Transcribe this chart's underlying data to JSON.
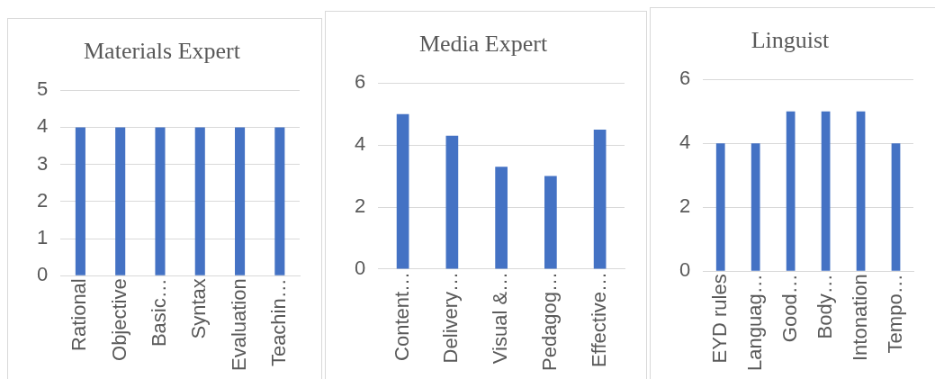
{
  "chart_data": [
    {
      "type": "bar",
      "title": "Materials Expert",
      "categories": [
        "Rational",
        "Objective",
        "Basic…",
        "Syntax",
        "Evaluation",
        "Teachin…"
      ],
      "values": [
        4,
        4,
        4,
        4,
        4,
        4
      ],
      "color": "#4472c4",
      "ylim": [
        0,
        5
      ],
      "yticks": [
        0,
        1,
        2,
        3,
        4,
        5
      ],
      "grid": "y"
    },
    {
      "type": "bar",
      "title": "Media Expert",
      "categories": [
        "Content…",
        "Delivery…",
        "Visual &…",
        "Pedagog…",
        "Effective…"
      ],
      "values": [
        5,
        4.3,
        3.3,
        3,
        4.5
      ],
      "color": "#4472c4",
      "ylim": [
        0,
        6
      ],
      "yticks": [
        0,
        2,
        4,
        6
      ],
      "grid": "y"
    },
    {
      "type": "bar",
      "title": "Linguist",
      "categories": [
        "EYD rules",
        "Languag…",
        "Good…",
        "Body…",
        "Intonation",
        "Tempo…"
      ],
      "values": [
        4,
        4,
        5,
        5,
        5,
        4
      ],
      "color": "#4472c4",
      "ylim": [
        0,
        6
      ],
      "yticks": [
        0,
        2,
        4,
        6
      ],
      "grid": "y"
    }
  ]
}
